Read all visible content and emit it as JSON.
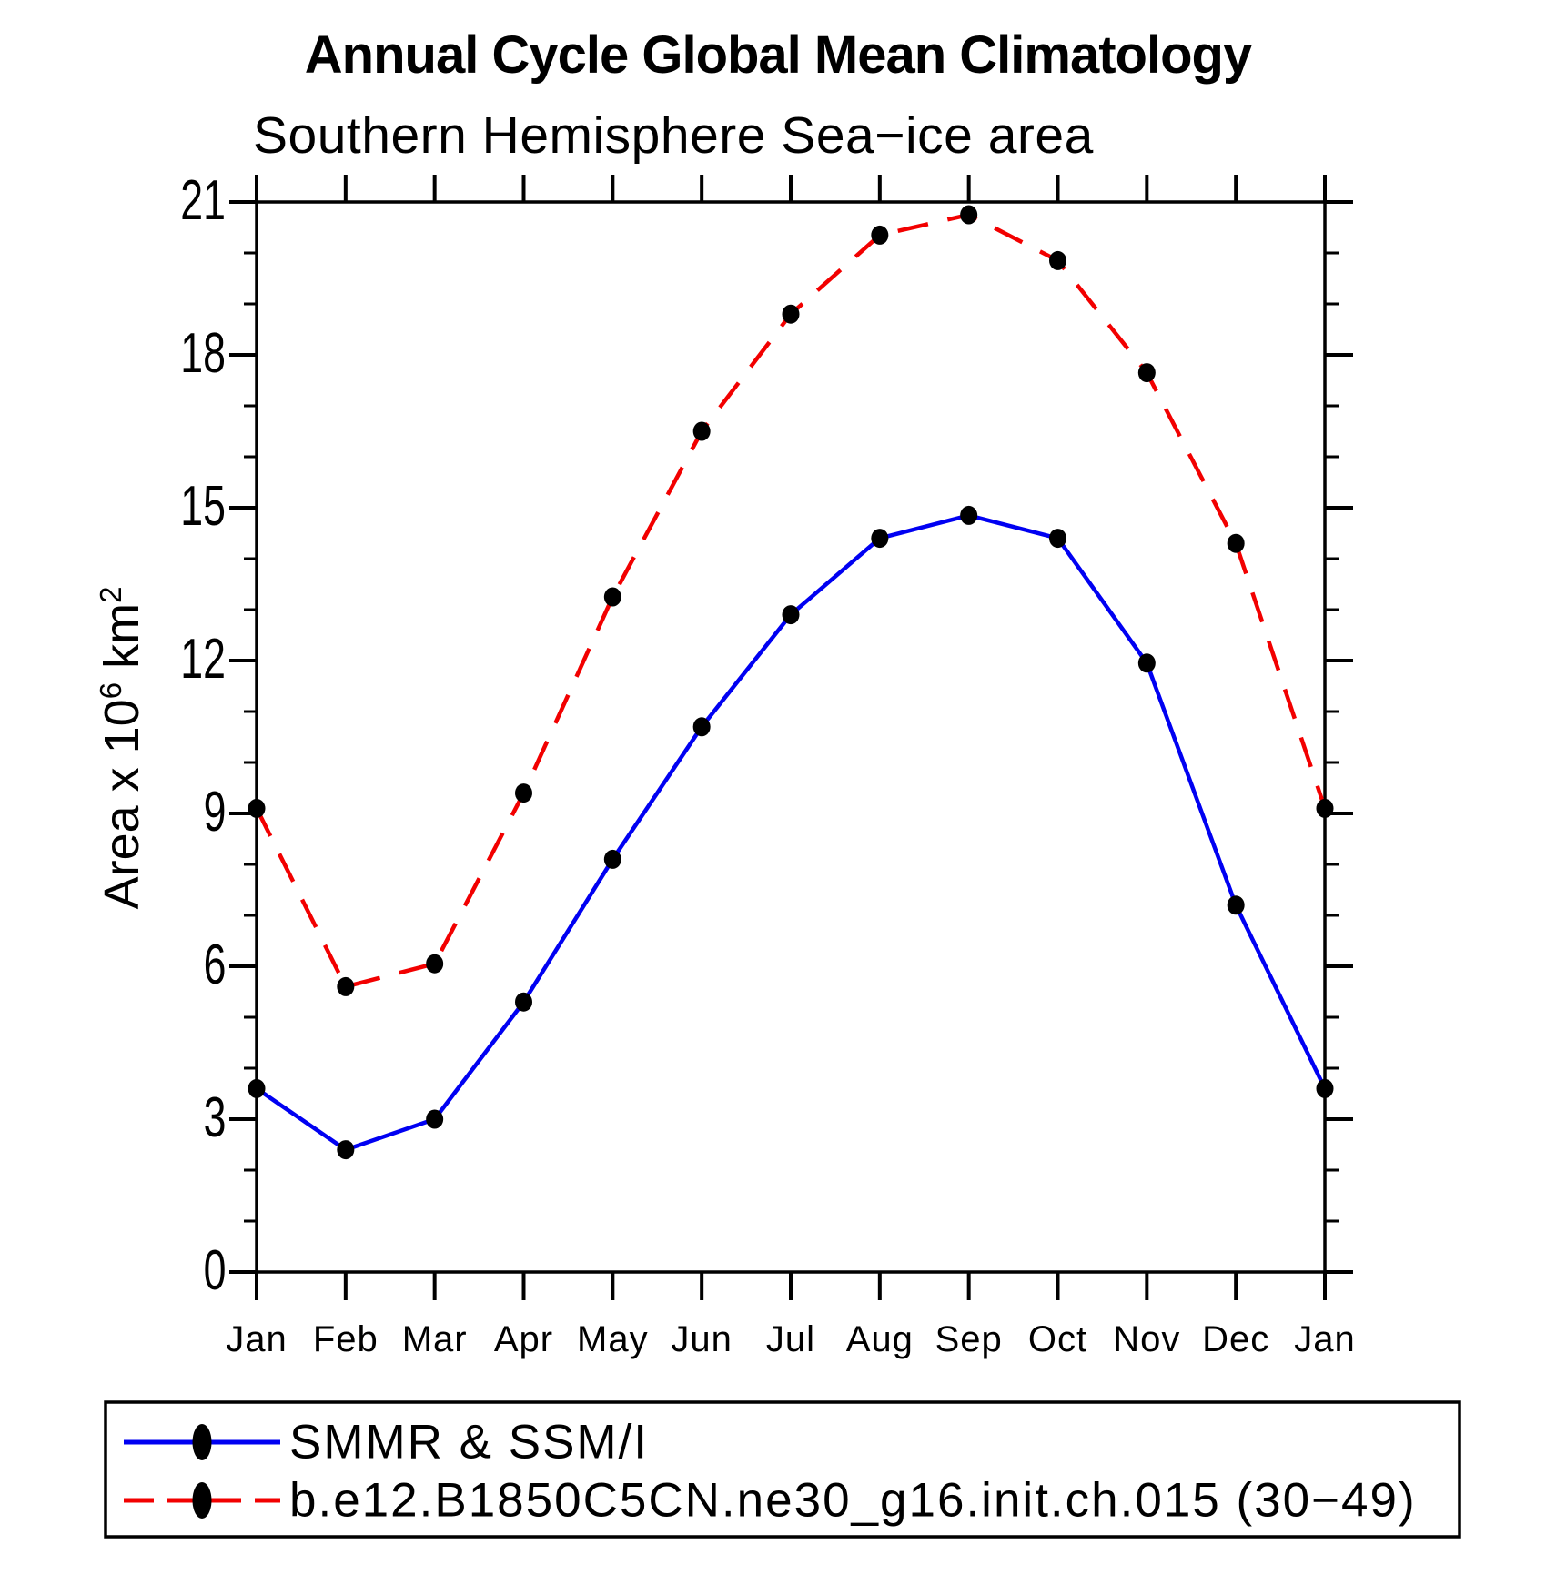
{
  "title": "Annual Cycle Global Mean Climatology",
  "subtitle": "Southern Hemisphere Sea−ice area",
  "y_axis": {
    "title_parts": {
      "prefix": "Area x 10",
      "sup1": "6",
      "mid": " km",
      "sup2": "2"
    },
    "tick_labels": [
      "0",
      "3",
      "6",
      "9",
      "12",
      "15",
      "18",
      "21"
    ],
    "min": 0,
    "max": 21
  },
  "x_axis": {
    "tick_labels": [
      "Jan",
      "Feb",
      "Mar",
      "Apr",
      "May",
      "Jun",
      "Jul",
      "Aug",
      "Sep",
      "Oct",
      "Nov",
      "Dec",
      "Jan"
    ]
  },
  "legend": {
    "items": [
      {
        "label": "SMMR & SSM/I",
        "color": "#0000f2",
        "line_style": "solid",
        "marker": "filled-circle"
      },
      {
        "label": "b.e12.B1850C5CN.ne30_g16.init.ch.015 (30−49)",
        "color": "#f20000",
        "line_style": "dashed",
        "marker": "filled-circle"
      }
    ]
  },
  "chart_data": {
    "type": "line",
    "title": "Annual Cycle Global Mean Climatology",
    "subtitle": "Southern Hemisphere Sea−ice area",
    "xlabel": "",
    "ylabel": "Area x 10^6 km^2",
    "ylim": [
      0,
      21
    ],
    "y_major_tick_step": 3,
    "y_minor_tick_step": 1,
    "grid": false,
    "legend_position": "bottom",
    "x": [
      "Jan",
      "Feb",
      "Mar",
      "Apr",
      "May",
      "Jun",
      "Jul",
      "Aug",
      "Sep",
      "Oct",
      "Nov",
      "Dec",
      "Jan"
    ],
    "series": [
      {
        "name": "SMMR & SSM/I",
        "color": "#0000f2",
        "line": "solid",
        "marker": "filled-circle",
        "marker_color": "#000000",
        "values": [
          3.6,
          2.4,
          3.0,
          5.3,
          8.1,
          10.7,
          12.9,
          14.4,
          14.85,
          14.4,
          11.95,
          7.2,
          3.6
        ]
      },
      {
        "name": "b.e12.B1850C5CN.ne30_g16.init.ch.015 (30−49)",
        "color": "#f20000",
        "line": "dashed",
        "marker": "filled-circle",
        "marker_color": "#000000",
        "values": [
          9.1,
          5.6,
          6.05,
          9.4,
          13.25,
          16.5,
          18.8,
          20.35,
          20.75,
          19.85,
          17.65,
          14.3,
          9.1
        ]
      }
    ]
  }
}
